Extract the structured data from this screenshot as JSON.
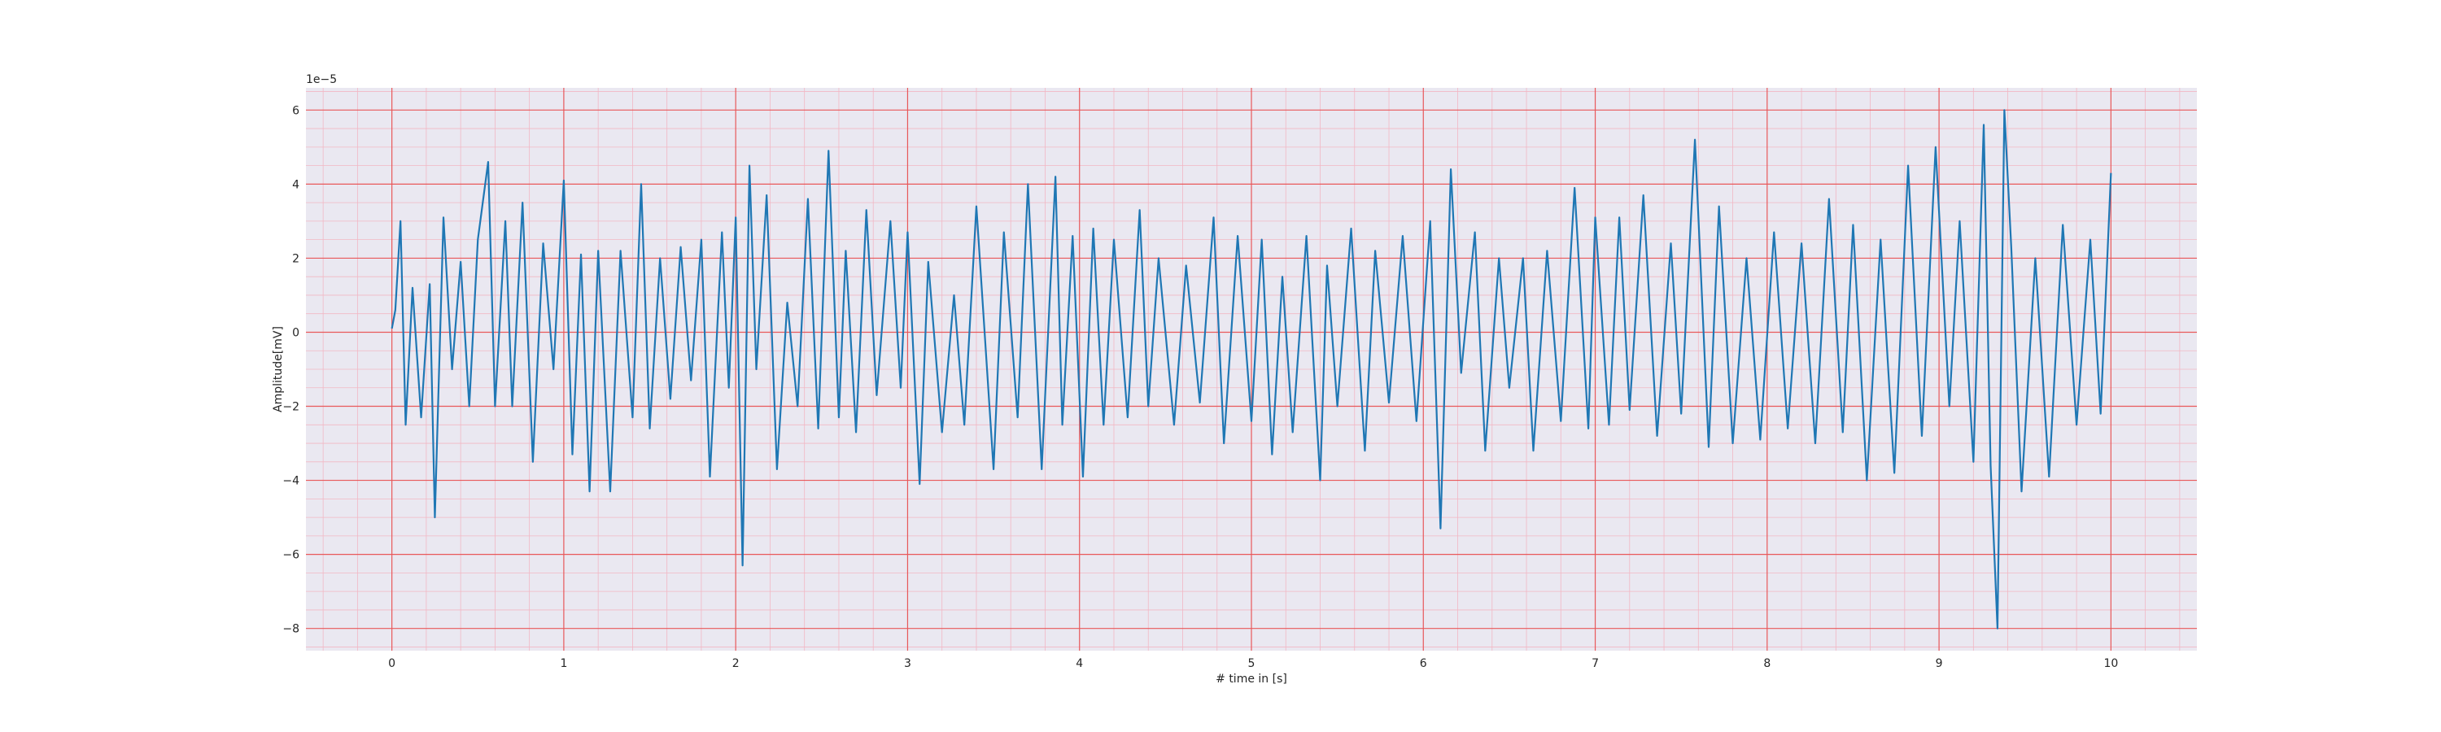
{
  "chart_data": {
    "type": "line",
    "title": "",
    "xlabel": "# time in [s]",
    "ylabel": "Amplitude[mV]",
    "y_offset_label": "1e−5",
    "xlim": [
      -0.5,
      10.5
    ],
    "ylim": [
      -8.6,
      6.6
    ],
    "x_ticks": [
      0,
      1,
      2,
      3,
      4,
      5,
      6,
      7,
      8,
      9,
      10
    ],
    "x_tick_labels": [
      "0",
      "1",
      "2",
      "3",
      "4",
      "5",
      "6",
      "7",
      "8",
      "9",
      "10"
    ],
    "y_ticks": [
      -8,
      -6,
      -4,
      -2,
      0,
      2,
      4,
      6
    ],
    "y_tick_labels": [
      "−8",
      "−6",
      "−4",
      "−2",
      "0",
      "2",
      "4",
      "6"
    ],
    "grid": {
      "major": true,
      "minor": true
    },
    "colors": {
      "plot_background": "#eae8f1",
      "major_grid": "#e8585a",
      "minor_grid": "#f2b7c4",
      "line": "#1f77b4"
    },
    "series": [
      {
        "x": [
          0.0,
          0.02,
          0.05,
          0.08,
          0.12,
          0.17,
          0.22,
          0.25,
          0.3,
          0.35,
          0.4,
          0.45,
          0.5,
          0.56,
          0.6,
          0.66,
          0.7,
          0.76,
          0.82,
          0.88,
          0.94,
          1.0,
          1.05,
          1.1,
          1.15,
          1.2,
          1.27,
          1.33,
          1.4,
          1.45,
          1.5,
          1.56,
          1.62,
          1.68,
          1.74,
          1.8,
          1.85,
          1.92,
          1.96,
          2.0,
          2.04,
          2.08,
          2.12,
          2.18,
          2.24,
          2.3,
          2.36,
          2.42,
          2.48,
          2.54,
          2.6,
          2.64,
          2.7,
          2.76,
          2.82,
          2.9,
          2.96,
          3.0,
          3.07,
          3.12,
          3.2,
          3.27,
          3.33,
          3.4,
          3.5,
          3.56,
          3.64,
          3.7,
          3.78,
          3.86,
          3.9,
          3.96,
          4.02,
          4.08,
          4.14,
          4.2,
          4.28,
          4.35,
          4.4,
          4.46,
          4.55,
          4.62,
          4.7,
          4.78,
          4.84,
          4.92,
          5.0,
          5.06,
          5.12,
          5.18,
          5.24,
          5.32,
          5.4,
          5.44,
          5.5,
          5.58,
          5.66,
          5.72,
          5.8,
          5.88,
          5.96,
          6.04,
          6.1,
          6.16,
          6.22,
          6.3,
          6.36,
          6.44,
          6.5,
          6.58,
          6.64,
          6.72,
          6.8,
          6.88,
          6.96,
          7.0,
          7.08,
          7.14,
          7.2,
          7.28,
          7.36,
          7.44,
          7.5,
          7.58,
          7.66,
          7.72,
          7.8,
          7.88,
          7.96,
          8.04,
          8.12,
          8.2,
          8.28,
          8.36,
          8.44,
          8.5,
          8.58,
          8.66,
          8.74,
          8.82,
          8.9,
          8.98,
          9.06,
          9.12,
          9.2,
          9.26,
          9.3,
          9.34,
          9.38,
          9.42,
          9.48,
          9.56,
          9.64,
          9.72,
          9.8,
          9.88,
          9.94,
          10.0
        ],
        "values": [
          0.1,
          0.6,
          3.0,
          -2.5,
          1.2,
          -2.3,
          1.3,
          -5.0,
          3.1,
          -1.0,
          1.9,
          -2.0,
          2.5,
          4.6,
          -2.0,
          3.0,
          -2.0,
          3.5,
          -3.5,
          2.4,
          -1.0,
          4.1,
          -3.3,
          2.1,
          -4.3,
          2.2,
          -4.3,
          2.2,
          -2.3,
          4.0,
          -2.6,
          2.0,
          -1.8,
          2.3,
          -1.3,
          2.5,
          -3.9,
          2.7,
          -1.5,
          3.1,
          -6.3,
          4.5,
          -1.0,
          3.7,
          -3.7,
          0.8,
          -2.0,
          3.6,
          -2.6,
          4.9,
          -2.3,
          2.2,
          -2.7,
          3.3,
          -1.7,
          3.0,
          -1.5,
          2.7,
          -4.1,
          1.9,
          -2.7,
          1.0,
          -2.5,
          3.4,
          -3.7,
          2.7,
          -2.3,
          4.0,
          -3.7,
          4.2,
          -2.5,
          2.6,
          -3.9,
          2.8,
          -2.5,
          2.5,
          -2.3,
          3.3,
          -2.0,
          2.0,
          -2.5,
          1.8,
          -1.9,
          3.1,
          -3.0,
          2.6,
          -2.4,
          2.5,
          -3.3,
          1.5,
          -2.7,
          2.6,
          -4.0,
          1.8,
          -2.0,
          2.8,
          -3.2,
          2.2,
          -1.9,
          2.6,
          -2.4,
          3.0,
          -5.3,
          4.4,
          -1.1,
          2.7,
          -3.2,
          2.0,
          -1.5,
          2.0,
          -3.2,
          2.2,
          -2.4,
          3.9,
          -2.6,
          3.1,
          -2.5,
          3.1,
          -2.1,
          3.7,
          -2.8,
          2.4,
          -2.2,
          5.2,
          -3.1,
          3.4,
          -3.0,
          2.0,
          -2.9,
          2.7,
          -2.6,
          2.4,
          -3.0,
          3.6,
          -2.7,
          2.9,
          -4.0,
          2.5,
          -3.8,
          4.5,
          -2.8,
          5.0,
          -2.0,
          3.0,
          -3.5,
          5.6,
          -3.6,
          -8.0,
          6.0,
          2.3,
          -4.3,
          2.0,
          -3.9,
          2.9,
          -2.5,
          2.5,
          -2.2,
          4.3
        ]
      }
    ]
  }
}
